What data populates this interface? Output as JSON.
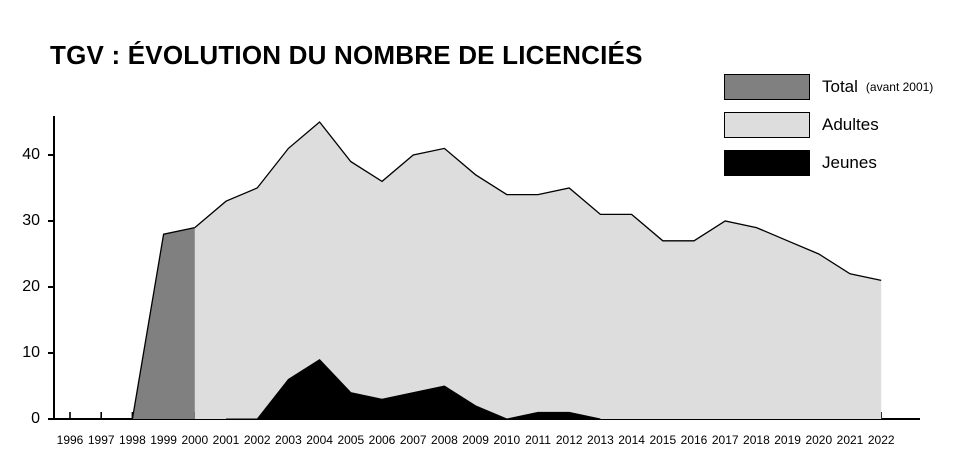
{
  "chart_data": {
    "type": "area",
    "title": "TGV : ÉVOLUTION DU NOMBRE DE LICENCIÉS",
    "xlabel": "",
    "ylabel": "",
    "x": [
      "1996",
      "1997",
      "1998",
      "1999",
      "2000",
      "2001",
      "2002",
      "2003",
      "2004",
      "2005",
      "2006",
      "2007",
      "2008",
      "2009",
      "2010",
      "2011",
      "2012",
      "2013",
      "2014",
      "2015",
      "2016",
      "2017",
      "2018",
      "2019",
      "2020",
      "2021",
      "2022"
    ],
    "ylim": [
      0,
      45
    ],
    "yticks": [
      "0",
      "10",
      "20",
      "30",
      "40"
    ],
    "grid": false,
    "legend_position": "top-right",
    "legend": [
      {
        "label": "Total",
        "note": "(avant 2001)",
        "color": "#808080"
      },
      {
        "label": "Adultes",
        "note": "",
        "color": "#dddddd"
      },
      {
        "label": "Jeunes",
        "note": "",
        "color": "#000000"
      }
    ],
    "series": [
      {
        "name": "Total",
        "x": [
          "1996",
          "1997",
          "1998",
          "1999",
          "2000"
        ],
        "values": [
          0,
          0,
          0,
          28,
          29
        ],
        "color": "#808080"
      },
      {
        "name": "Adultes",
        "x": [
          "2000",
          "2001",
          "2002",
          "2003",
          "2004",
          "2005",
          "2006",
          "2007",
          "2008",
          "2009",
          "2010",
          "2011",
          "2012",
          "2013",
          "2014",
          "2015",
          "2016",
          "2017",
          "2018",
          "2019",
          "2020",
          "2021",
          "2022"
        ],
        "values": [
          29,
          33,
          35,
          41,
          45,
          39,
          36,
          40,
          41,
          37,
          34,
          34,
          35,
          31,
          31,
          27,
          27,
          30,
          29,
          27,
          25,
          22,
          21
        ],
        "color": "#dddddd"
      },
      {
        "name": "Jeunes",
        "x": [
          "2001",
          "2002",
          "2003",
          "2004",
          "2005",
          "2006",
          "2007",
          "2008",
          "2009",
          "2010",
          "2011",
          "2012",
          "2013"
        ],
        "values": [
          0,
          0,
          6,
          9,
          4,
          3,
          4,
          5,
          2,
          0,
          1,
          1,
          0
        ],
        "color": "#000000"
      }
    ]
  }
}
